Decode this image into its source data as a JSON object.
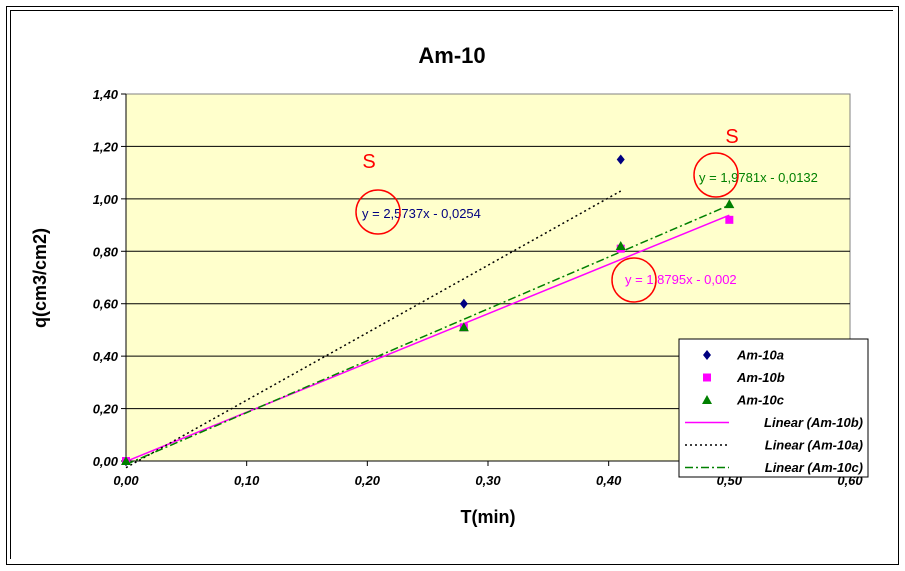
{
  "chart_data": {
    "type": "scatter",
    "title": "Am-10",
    "xlabel": "T(min)",
    "ylabel": "q(cm3/cm2)",
    "xlim": [
      0,
      0.6
    ],
    "ylim": [
      0,
      1.4
    ],
    "x_ticks": [
      "0,00",
      "0,10",
      "0,20",
      "0,30",
      "0,40",
      "0,50",
      "0,60"
    ],
    "y_ticks": [
      "0,00",
      "0,20",
      "0,40",
      "0,60",
      "0,80",
      "1,00",
      "1,20",
      "1,40"
    ],
    "plot_background": "#ffffcc",
    "grid": "horizontal",
    "series": [
      {
        "name": "Am-10a",
        "marker": "diamond",
        "color": "#000080",
        "x": [
          0,
          0.28,
          0.41
        ],
        "y": [
          0,
          0.6,
          1.15
        ]
      },
      {
        "name": "Am-10b",
        "marker": "square",
        "color": "#ff00ff",
        "x": [
          0,
          0.28,
          0.41,
          0.5
        ],
        "y": [
          0,
          0.51,
          0.81,
          0.92
        ]
      },
      {
        "name": "Am-10c",
        "marker": "triangle",
        "color": "#008000",
        "x": [
          0,
          0.28,
          0.41,
          0.5
        ],
        "y": [
          0,
          0.51,
          0.82,
          0.98
        ]
      }
    ],
    "trendlines": [
      {
        "name": "Linear (Am-10b)",
        "style": "solid",
        "color": "#ff00ff",
        "slope": 1.8795,
        "intercept": -0.002,
        "x_range": [
          0,
          0.5
        ],
        "equation": "y = 1,8795x - 0,002"
      },
      {
        "name": "Linear (Am-10a)",
        "style": "dotted",
        "color": "#000000",
        "slope": 2.5737,
        "intercept": -0.0254,
        "x_range": [
          0,
          0.41
        ],
        "equation": "y = 2,5737x - 0,0254"
      },
      {
        "name": "Linear (Am-10c)",
        "style": "dashdot",
        "color": "#008000",
        "slope": 1.9781,
        "intercept": -0.0132,
        "x_range": [
          0,
          0.5
        ],
        "equation": "y = 1,9781x - 0,0132"
      }
    ],
    "legend": {
      "placement": "bottom-right",
      "entries": [
        "Am-10a",
        "Am-10b",
        "Am-10c",
        "Linear (Am-10b)",
        "Linear (Am-10a)",
        "Linear (Am-10c)"
      ]
    },
    "annotations": [
      {
        "text": "S",
        "color": "#ff0000"
      },
      {
        "text": "S",
        "color": "#ff0000"
      }
    ]
  }
}
